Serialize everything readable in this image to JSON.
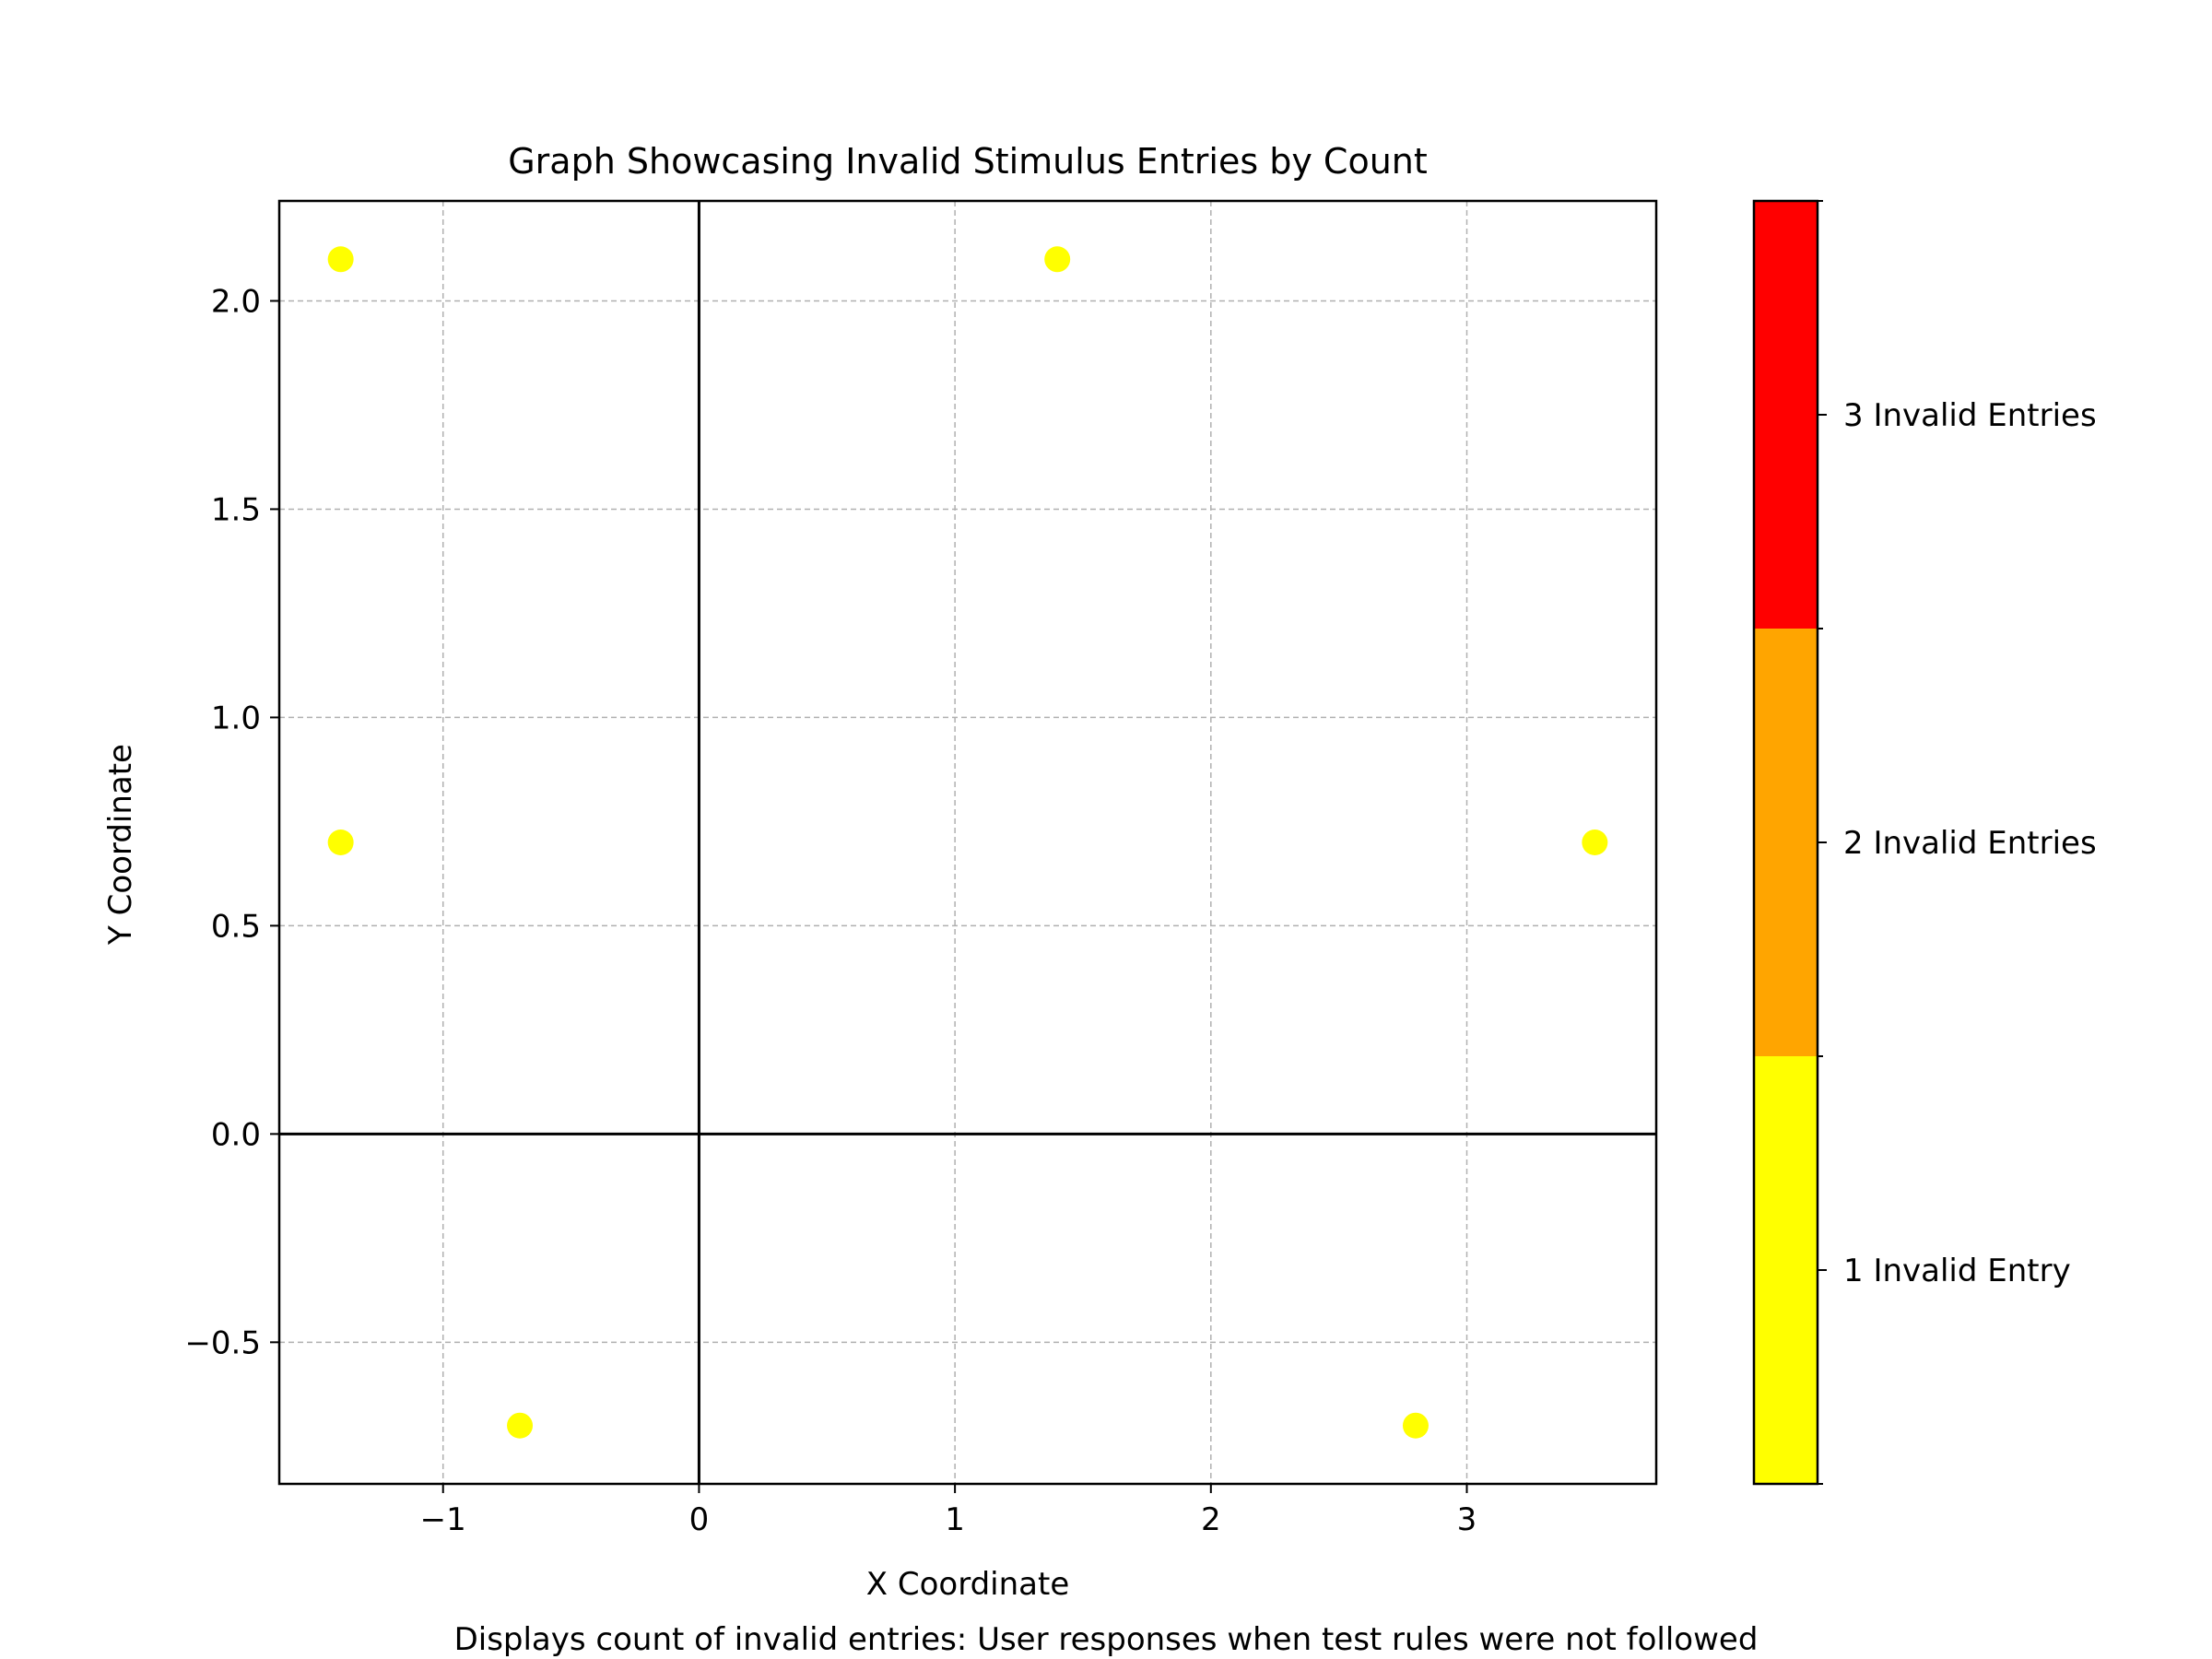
{
  "chart_data": {
    "type": "scatter",
    "title": "Graph Showcasing Invalid Stimulus Entries by Count",
    "xlabel": "X Coordinate",
    "ylabel": "Y Coordinate",
    "caption": "Displays count of invalid entries: User responses when test rules were not followed",
    "xlim": [
      -1.64,
      3.74
    ],
    "ylim": [
      -0.84,
      2.24
    ],
    "x_ticks": [
      -1,
      0,
      1,
      2,
      3
    ],
    "x_tick_labels": [
      "−1",
      "0",
      "1",
      "2",
      "3"
    ],
    "y_ticks": [
      -0.5,
      0.0,
      0.5,
      1.0,
      1.5,
      2.0
    ],
    "y_tick_labels": [
      "−0.5",
      "0.0",
      "0.5",
      "1.0",
      "1.5",
      "2.0"
    ],
    "grid": true,
    "reference_lines": {
      "x": 0,
      "y": 0
    },
    "points": [
      {
        "x": -1.4,
        "y": 2.1,
        "count": 1
      },
      {
        "x": 1.4,
        "y": 2.1,
        "count": 1
      },
      {
        "x": -1.4,
        "y": 0.7,
        "count": 1
      },
      {
        "x": 3.5,
        "y": 0.7,
        "count": 1
      },
      {
        "x": -0.7,
        "y": -0.7,
        "count": 1
      },
      {
        "x": 2.8,
        "y": -0.7,
        "count": 1
      }
    ],
    "colorbar": {
      "range": [
        0.5,
        3.5
      ],
      "levels": [
        {
          "value": 1,
          "label": "1 Invalid Entry",
          "color": "#ffff00"
        },
        {
          "value": 2,
          "label": "2 Invalid Entries",
          "color": "#ffa500"
        },
        {
          "value": 3,
          "label": "3 Invalid Entries",
          "color": "#ff0000"
        }
      ]
    }
  }
}
